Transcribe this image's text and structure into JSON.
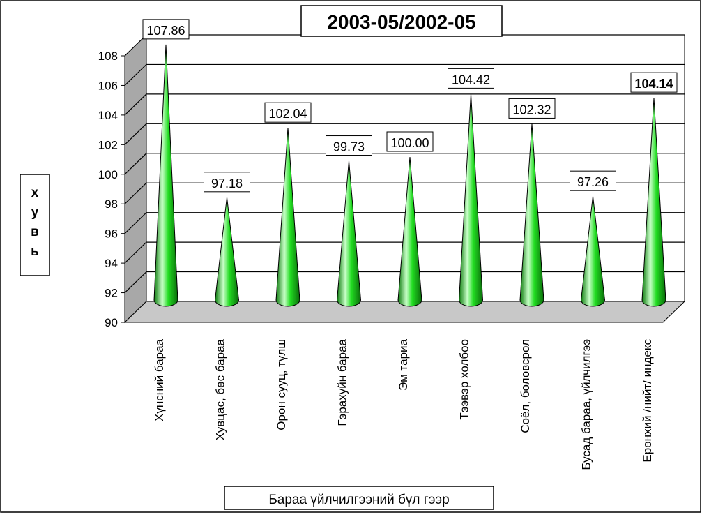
{
  "chart_data": {
    "type": "bar",
    "style": "3d-cones",
    "title": "2003-05/2002-05",
    "ylabel": "хувь",
    "xlabel": "Бараа үйлчилгээний бүл гээр",
    "ylim": [
      90,
      108
    ],
    "yticks": [
      90,
      92,
      94,
      96,
      98,
      100,
      102,
      104,
      106,
      108
    ],
    "grid": true,
    "legend": "none",
    "categories": [
      "Хүнсний бараа",
      "Хувцас, бөс бараа",
      "Орон сууц, түлш",
      "Гэрахуйн бараа",
      "Эм тариа",
      "Тээвэр холбоо",
      "Соёл, боловсрол",
      "Бусад бараа, үйлчилгээ",
      "Ерөнхий /нийт/ индекс"
    ],
    "values": [
      107.86,
      97.18,
      102.04,
      99.73,
      100.0,
      104.42,
      102.32,
      97.26,
      104.14
    ],
    "data_labels": [
      "107.86",
      "97.18",
      "102.04",
      "99.73",
      "100.00",
      "104.42",
      "102.32",
      "97.26",
      "104.14"
    ],
    "colors": {
      "cone": "#22dd22",
      "cone_light": "#c8ffc8",
      "cone_dark": "#0a7a0a",
      "back_wall": "#ffffff",
      "side_wall": "#a8a8a8",
      "floor": "#c8c8c8",
      "grid": "#000000"
    }
  }
}
